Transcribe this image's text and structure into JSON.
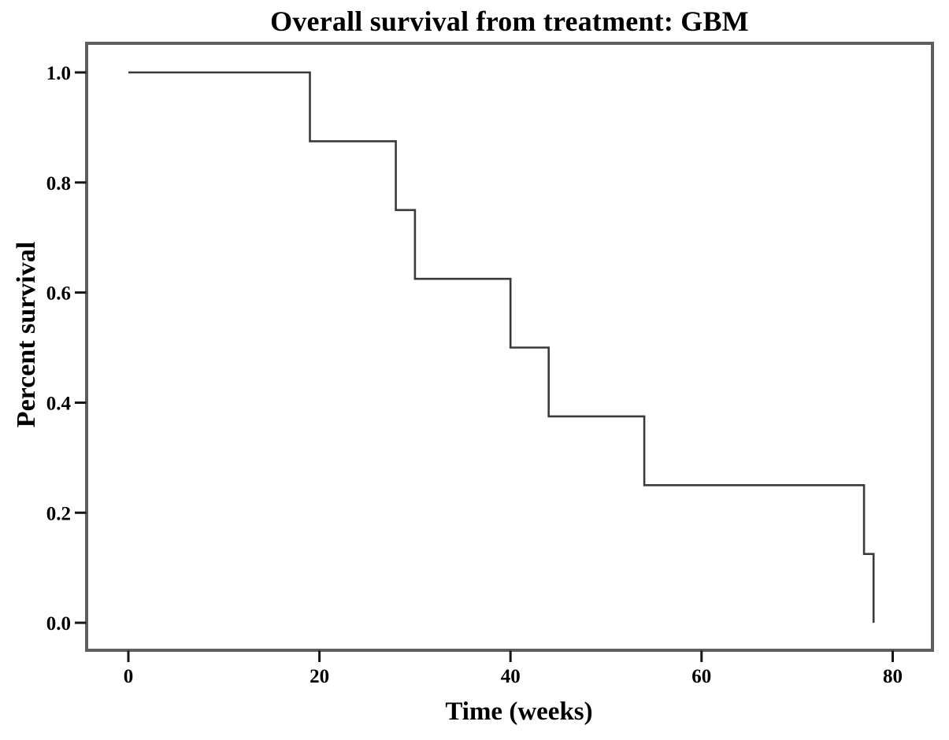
{
  "figure": {
    "background": "#ffffff"
  },
  "chart_data": {
    "type": "line",
    "subtype": "kaplan-meier-step",
    "title": "Overall survival from treatment: GBM",
    "xlabel": "Time (weeks)",
    "ylabel": "Percent survival",
    "xtick_values": [
      0,
      20,
      40,
      60,
      80
    ],
    "xtick_labels": [
      "0",
      "20",
      "40",
      "60",
      "80"
    ],
    "ytick_values": [
      0.0,
      0.2,
      0.4,
      0.6,
      0.8,
      1.0
    ],
    "ytick_labels": [
      "0.0",
      "0.2",
      "0.4",
      "0.6",
      "0.8",
      "1.0"
    ],
    "xlim": [
      -4.2,
      84.0
    ],
    "ylim": [
      -0.047,
      1.05
    ],
    "grid": false,
    "legend": null,
    "series": [
      {
        "name": "GBM overall survival",
        "color": "#3a3a3a",
        "start": {
          "time": 0,
          "survival": 1.0
        },
        "events": [
          {
            "time": 19,
            "survival": 0.875
          },
          {
            "time": 28,
            "survival": 0.75
          },
          {
            "time": 30,
            "survival": 0.625
          },
          {
            "time": 40,
            "survival": 0.5
          },
          {
            "time": 44,
            "survival": 0.375
          },
          {
            "time": 54,
            "survival": 0.25
          },
          {
            "time": 77,
            "survival": 0.125
          },
          {
            "time": 78,
            "survival": 0.0
          }
        ]
      }
    ]
  },
  "colors": {
    "frame": "#5e5e5e",
    "tick": "#161616",
    "text": "#000000",
    "background": "#ffffff"
  }
}
